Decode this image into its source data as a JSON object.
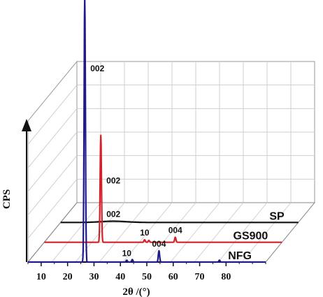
{
  "chart_data": {
    "type": "line",
    "style": "3d-waterfall",
    "xlabel": "2θ /(°)",
    "ylabel": "CPS",
    "xlim": [
      5,
      95
    ],
    "xticks": [
      10,
      20,
      30,
      40,
      50,
      60,
      70,
      80
    ],
    "xtick_labels": [
      "10",
      "20",
      "30",
      "40",
      "50",
      "60",
      "70",
      "80"
    ],
    "grid": true,
    "series": [
      {
        "name": "NFG",
        "color": "#1f1a8c",
        "depth": 0,
        "baseline": [
          [
            5,
            0
          ],
          [
            95,
            0
          ]
        ],
        "peaks": [
          {
            "x": 26.5,
            "height": 420,
            "label": "002"
          },
          {
            "x": 42.4,
            "height": 3,
            "label": "10"
          },
          {
            "x": 44.5,
            "height": 4,
            "label": ""
          },
          {
            "x": 54.6,
            "height": 18,
            "label": "004"
          },
          {
            "x": 77.5,
            "height": 3,
            "label": ""
          }
        ]
      },
      {
        "name": "GS900",
        "color": "#d42027",
        "depth": 1,
        "baseline": [
          [
            5,
            0
          ],
          [
            95,
            0
          ]
        ],
        "peaks": [
          {
            "x": 26.4,
            "height": 170,
            "label": "002"
          },
          {
            "x": 43.0,
            "height": 4,
            "label": "10"
          },
          {
            "x": 44.6,
            "height": 3,
            "label": ""
          },
          {
            "x": 54.6,
            "height": 8,
            "label": "004"
          }
        ]
      },
      {
        "name": "SP",
        "color": "#111111",
        "depth": 2,
        "baseline": [
          [
            5,
            0
          ],
          [
            95,
            0
          ]
        ],
        "peaks": [
          {
            "x": 25.0,
            "height": 2,
            "width": 7,
            "label": "002"
          }
        ]
      }
    ]
  }
}
